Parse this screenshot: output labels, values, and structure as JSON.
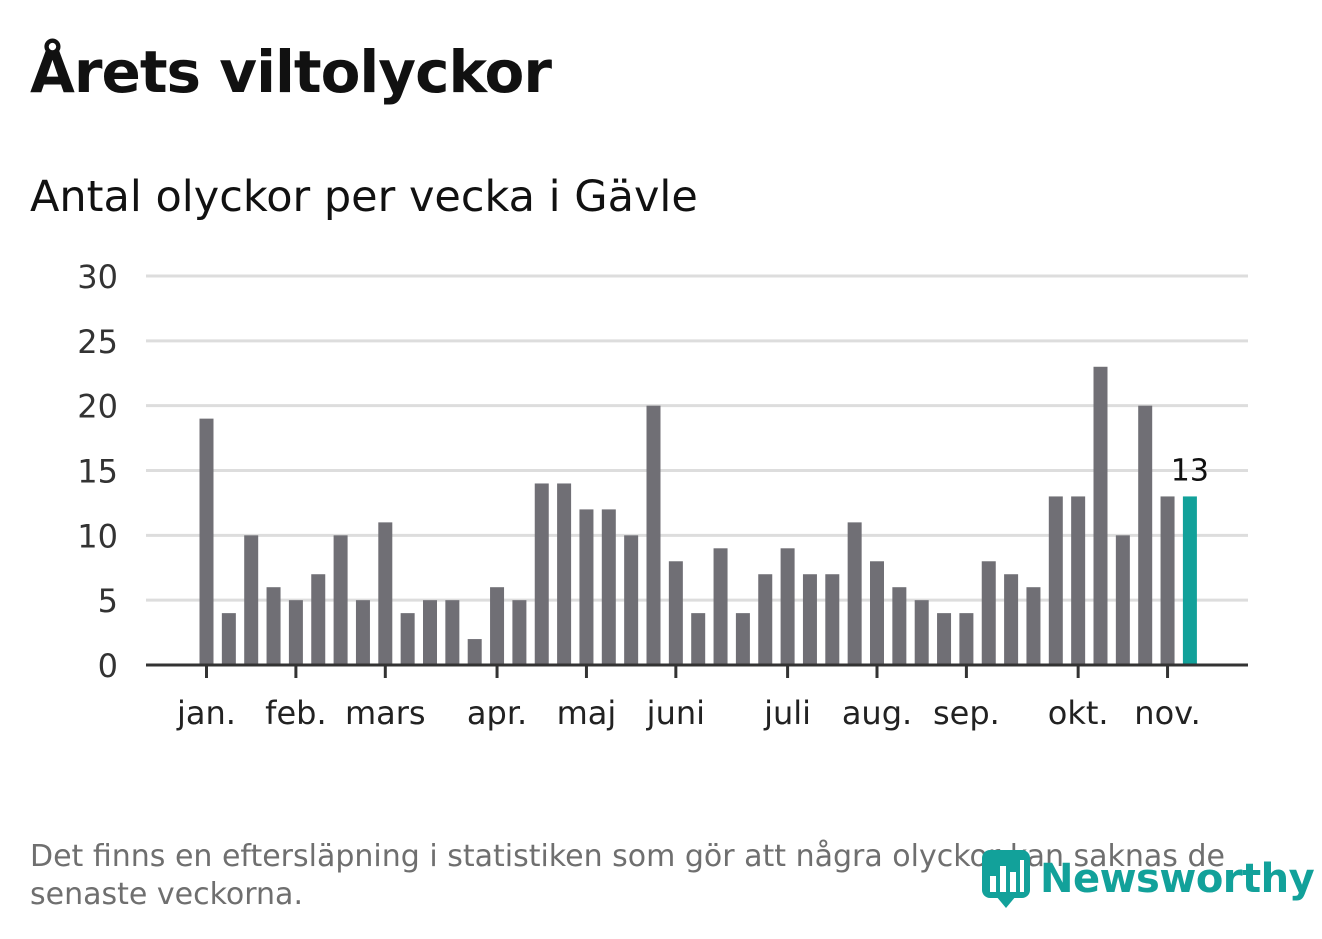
{
  "title": "Årets viltolyckor",
  "subtitle": "Antal olyckor per vecka i Gävle",
  "footnote": "Det finns en eftersläpning i statistiken som gör att några olyckor kan saknas de senaste veckorna.",
  "brand": {
    "name": "Newsworthy",
    "color": "#12a19a"
  },
  "colors": {
    "bar": "#706f75",
    "highlight": "#12a19a",
    "grid": "#dddddd",
    "axis": "#333333"
  },
  "chart_data": {
    "type": "bar",
    "title": "Antal olyckor per vecka i Gävle",
    "xlabel": "",
    "ylabel": "",
    "ylim": [
      0,
      30
    ],
    "yticks": [
      0,
      5,
      10,
      15,
      20,
      25,
      30
    ],
    "grid": true,
    "x_ticks": [
      {
        "label": "jan.",
        "week": 1
      },
      {
        "label": "feb.",
        "week": 5
      },
      {
        "label": "mars",
        "week": 9
      },
      {
        "label": "apr.",
        "week": 14
      },
      {
        "label": "maj",
        "week": 18
      },
      {
        "label": "juni",
        "week": 22
      },
      {
        "label": "juli",
        "week": 27
      },
      {
        "label": "aug.",
        "week": 31
      },
      {
        "label": "sep.",
        "week": 35
      },
      {
        "label": "okt.",
        "week": 40
      },
      {
        "label": "nov.",
        "week": 44
      }
    ],
    "values": [
      19,
      4,
      10,
      6,
      5,
      7,
      10,
      5,
      11,
      4,
      5,
      5,
      2,
      6,
      5,
      14,
      14,
      12,
      12,
      10,
      20,
      8,
      4,
      9,
      4,
      7,
      9,
      7,
      7,
      11,
      8,
      6,
      5,
      4,
      4,
      8,
      7,
      6,
      13,
      13,
      23,
      10,
      20,
      13,
      13
    ],
    "highlight_index": 44,
    "annotations": [
      {
        "index": 44,
        "text": "13"
      }
    ]
  }
}
